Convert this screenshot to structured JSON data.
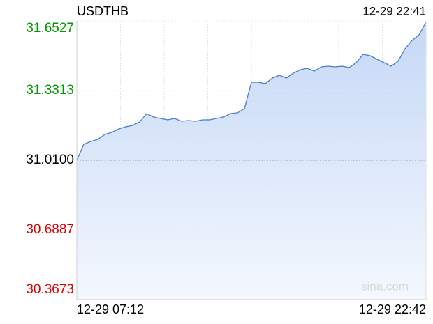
{
  "chart_data": {
    "type": "area",
    "title": "USDTHB",
    "timestamp": "12-29 22:41",
    "watermark": "sina.com",
    "categories": [
      "12-29 07:12",
      null,
      null,
      null,
      null,
      null,
      null,
      null,
      null,
      null,
      null,
      null,
      null,
      null,
      null,
      null,
      null,
      null,
      null,
      null,
      null,
      null,
      null,
      null,
      null,
      null,
      null,
      null,
      null,
      null,
      null,
      null,
      null,
      null,
      null,
      null,
      null,
      null,
      null,
      null,
      null,
      null,
      null,
      null,
      null,
      null,
      null,
      null,
      null,
      null,
      "12-29 22:42"
    ],
    "values": [
      31.01,
      31.0839,
      31.0968,
      31.1064,
      31.1289,
      31.1385,
      31.1546,
      31.1642,
      31.1707,
      31.1867,
      31.2253,
      31.2092,
      31.2028,
      31.1964,
      31.2028,
      31.19,
      31.1932,
      31.19,
      31.1964,
      31.1964,
      31.2028,
      31.2092,
      31.2253,
      31.2285,
      31.2478,
      31.3699,
      31.3699,
      31.3635,
      31.3892,
      31.402,
      31.3892,
      31.4117,
      31.4278,
      31.4342,
      31.4213,
      31.4406,
      31.4438,
      31.4406,
      31.4438,
      31.4374,
      31.4599,
      31.4985,
      31.492,
      31.476,
      31.4599,
      31.4438,
      31.4663,
      31.5242,
      31.5627,
      31.5884,
      31.6463
    ],
    "color": "#4a7bd0",
    "ylim": [
      30.3673,
      31.6527
    ],
    "yticks": [
      31.6527,
      31.3313,
      {
        "value": 31.01,
        "label": "31.0100"
      },
      30.6887,
      30.3673
    ],
    "ytick_colors": [
      "#009900",
      "#009900",
      "#000000",
      "#dd0000",
      "#dd0000"
    ],
    "grid": true
  }
}
